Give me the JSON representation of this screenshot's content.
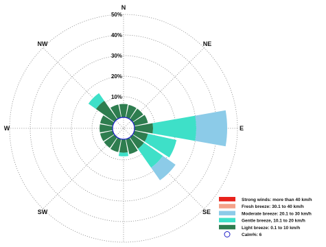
{
  "chart_data": {
    "type": "wind-rose",
    "directions": [
      {
        "label": "N",
        "angle": 0
      },
      {
        "label": "NE",
        "angle": 45
      },
      {
        "label": "E",
        "angle": 90
      },
      {
        "label": "SE",
        "angle": 135
      },
      {
        "label": "SW",
        "angle": 225
      },
      {
        "label": "W",
        "angle": 270
      },
      {
        "label": "NW",
        "angle": 315
      }
    ],
    "rings": [
      {
        "value": 10,
        "label": "10%"
      },
      {
        "value": 20,
        "label": "20%"
      },
      {
        "value": 30,
        "label": "30%"
      },
      {
        "value": 40,
        "label": "40%"
      },
      {
        "value": 50,
        "label": "50%"
      }
    ],
    "max_percent": 50,
    "calm_percent": 6,
    "series": [
      {
        "name": "Strong winds: more than 40 km/h",
        "color": "#e8221c"
      },
      {
        "name": "Fresh breeze: 30.1 to 40 km/h",
        "color": "#f4a28a"
      },
      {
        "name": "Moderate breeze: 20.1 to 30 km/h",
        "color": "#8ccbe8"
      },
      {
        "name": "Gentle breeze, 10.1 to 20 km/h",
        "color": "#3ee0c8"
      },
      {
        "name": "Light breeze: 0.1 to 10 km/h",
        "color": "#2e7d4f"
      }
    ],
    "legend_calm_label": "Calm%:  6",
    "sectors": [
      {
        "center": 0,
        "width": 20,
        "segments": [
          {
            "series": 4,
            "from": 0,
            "to": 6.5
          }
        ]
      },
      {
        "center": 22.5,
        "width": 20,
        "segments": [
          {
            "series": 4,
            "from": 0,
            "to": 6.3
          }
        ]
      },
      {
        "center": 45,
        "width": 20,
        "segments": [
          {
            "series": 4,
            "from": 0,
            "to": 6.3
          }
        ]
      },
      {
        "center": 67.5,
        "width": 20,
        "segments": [
          {
            "series": 4,
            "from": 0,
            "to": 6.8
          }
        ]
      },
      {
        "center": 90,
        "width": 20,
        "segments": [
          {
            "series": 4,
            "from": 0,
            "to": 9
          },
          {
            "series": 3,
            "from": 9,
            "to": 30
          },
          {
            "series": 2,
            "from": 30,
            "to": 45
          }
        ]
      },
      {
        "center": 112.5,
        "width": 20,
        "segments": [
          {
            "series": 4,
            "from": 0,
            "to": 6.8
          },
          {
            "series": 3,
            "from": 6.8,
            "to": 21
          }
        ]
      },
      {
        "center": 135,
        "width": 20,
        "segments": [
          {
            "series": 4,
            "from": 0,
            "to": 6.8
          },
          {
            "series": 3,
            "from": 6.8,
            "to": 18
          },
          {
            "series": 2,
            "from": 18,
            "to": 25.5
          }
        ]
      },
      {
        "center": 157.5,
        "width": 20,
        "segments": [
          {
            "series": 4,
            "from": 0,
            "to": 7.5
          }
        ]
      },
      {
        "center": 180,
        "width": 20,
        "segments": [
          {
            "series": 4,
            "from": 0,
            "to": 6.5
          },
          {
            "series": 3,
            "from": 6.5,
            "to": 8.3
          }
        ]
      },
      {
        "center": 202.5,
        "width": 20,
        "segments": [
          {
            "series": 4,
            "from": 0,
            "to": 6.5
          }
        ]
      },
      {
        "center": 225,
        "width": 20,
        "segments": [
          {
            "series": 4,
            "from": 0,
            "to": 6.3
          }
        ]
      },
      {
        "center": 247.5,
        "width": 20,
        "segments": [
          {
            "series": 4,
            "from": 0,
            "to": 6.3
          }
        ]
      },
      {
        "center": 270,
        "width": 20,
        "segments": [
          {
            "series": 4,
            "from": 0,
            "to": 6.3
          }
        ]
      },
      {
        "center": 292.5,
        "width": 20,
        "segments": [
          {
            "series": 4,
            "from": 0,
            "to": 6.3
          }
        ]
      },
      {
        "center": 315,
        "width": 20,
        "segments": [
          {
            "series": 4,
            "from": 0,
            "to": 11
          },
          {
            "series": 3,
            "from": 11,
            "to": 15.5
          }
        ]
      },
      {
        "center": 337.5,
        "width": 20,
        "segments": [
          {
            "series": 4,
            "from": 0,
            "to": 6.5
          }
        ]
      }
    ]
  }
}
